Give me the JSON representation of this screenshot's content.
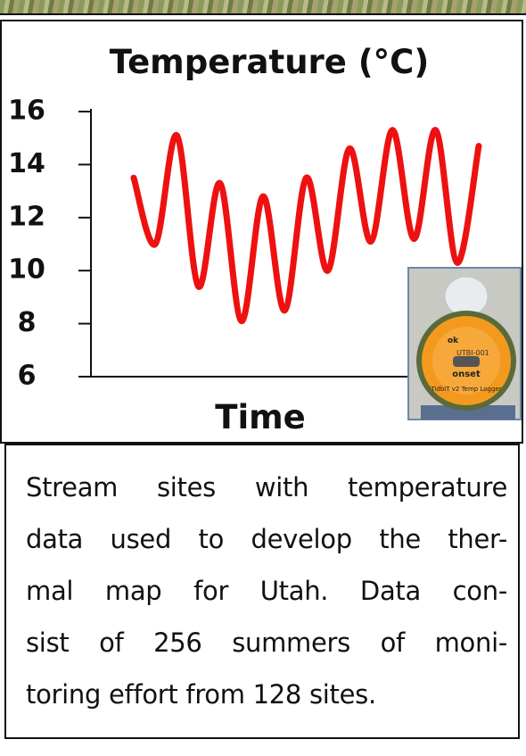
{
  "chart_data": {
    "type": "line",
    "title": "Temperature (°C)",
    "x_label": "Time",
    "categories": [
      null,
      null,
      null,
      null,
      null,
      null,
      null,
      null,
      null,
      null,
      null,
      null,
      null,
      null,
      null,
      null,
      null
    ],
    "series": [
      {
        "name": null,
        "color": "#ee1111",
        "values": [
          13.5,
          11.0,
          15.1,
          9.4,
          13.3,
          8.1,
          12.8,
          8.5,
          13.5,
          10.0,
          14.6,
          11.1,
          15.3,
          11.2,
          15.3,
          10.3,
          14.7
        ]
      }
    ],
    "ylim": [
      6,
      16
    ],
    "yticks": [
      6,
      8,
      10,
      12,
      14,
      16
    ]
  },
  "inset": {
    "labels": [
      "ok",
      "UTBI-001",
      "onset",
      "TidbiT v2 Temp Logger"
    ]
  },
  "caption": {
    "lines": [
      "Stream sites with temperature",
      "data used to develop the ther-",
      "mal map for Utah. Data con-",
      "sist of 256 summers of moni-",
      "toring effort from 128 sites."
    ]
  }
}
